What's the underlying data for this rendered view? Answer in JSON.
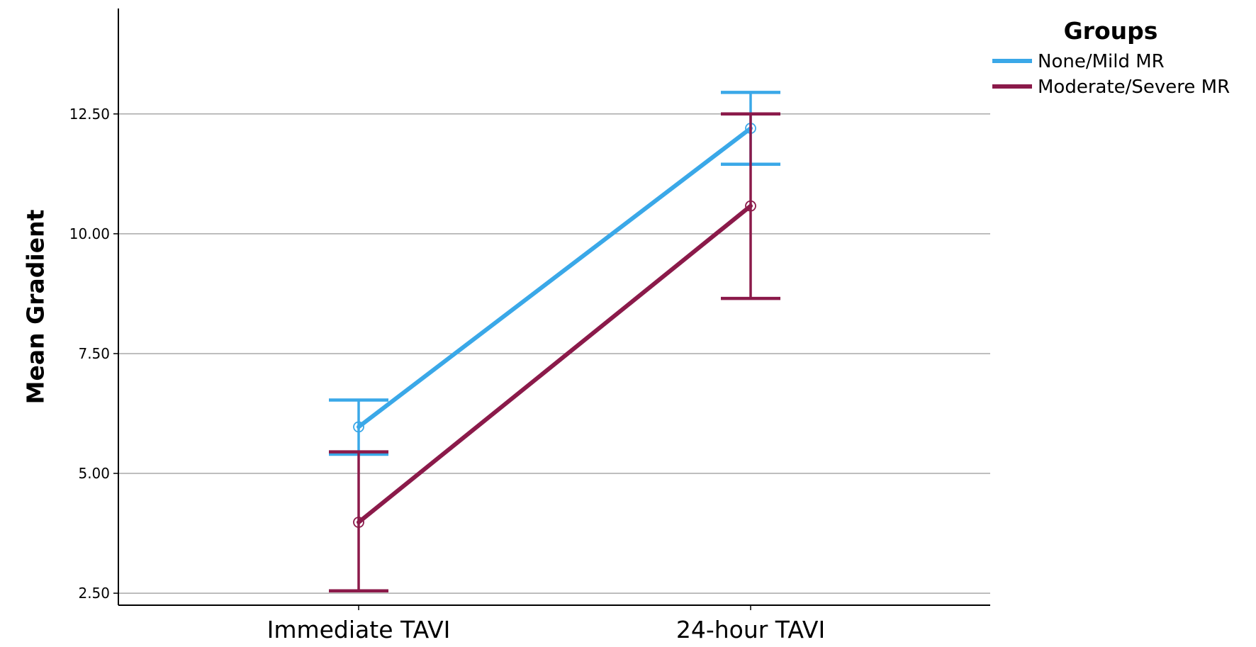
{
  "chart_data": {
    "type": "line",
    "title": "",
    "xlabel": "",
    "ylabel": "Mean Gradient",
    "categories": [
      "Immediate TAVI",
      "24-hour TAVI"
    ],
    "y_ticks": [
      "2.50",
      "5.00",
      "7.50",
      "10.00",
      "12.50"
    ],
    "ylim": [
      2.25,
      14.7
    ],
    "grid": true,
    "legend": {
      "title": "Groups",
      "placement": "top-right"
    },
    "series": [
      {
        "name": "None/Mild MR",
        "color": "#3aa8e8",
        "values": [
          5.97,
          12.2
        ],
        "error_low": [
          5.4,
          11.45
        ],
        "error_high": [
          6.53,
          12.95
        ]
      },
      {
        "name": "Moderate/Severe MR",
        "color": "#8b1a4a",
        "values": [
          3.98,
          10.58
        ],
        "error_low": [
          2.55,
          8.65
        ],
        "error_high": [
          5.45,
          12.5
        ]
      }
    ]
  }
}
